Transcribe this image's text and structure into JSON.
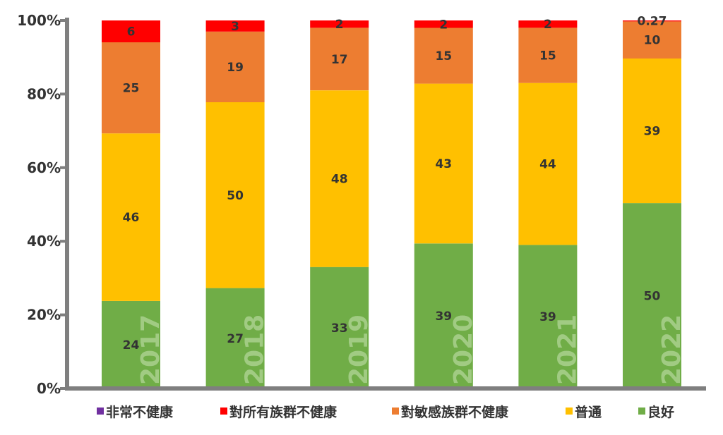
{
  "chart_data": {
    "type": "bar",
    "stacked": true,
    "normalized": true,
    "categories": [
      "2017",
      "2018",
      "2019",
      "2020",
      "2021",
      "2022"
    ],
    "series": [
      {
        "name": "良好",
        "color": "#70ad47",
        "values": [
          24,
          27,
          33,
          39,
          39,
          50
        ],
        "labels": [
          "24",
          "27",
          "33",
          "39",
          "39",
          "50"
        ]
      },
      {
        "name": "普通",
        "color": "#ffc000",
        "values": [
          46,
          50,
          48,
          43,
          44,
          39
        ],
        "labels": [
          "46",
          "50",
          "48",
          "43",
          "44",
          "39"
        ]
      },
      {
        "name": "對敏感族群不健康",
        "color": "#ed7d31",
        "values": [
          25,
          19,
          17,
          15,
          15,
          10
        ],
        "labels": [
          "25",
          "19",
          "17",
          "15",
          "15",
          "10"
        ]
      },
      {
        "name": "對所有族群不健康",
        "color": "#ff0000",
        "values": [
          6,
          3,
          2,
          2,
          2,
          0.27
        ],
        "labels": [
          "6",
          "3",
          "2",
          "2",
          "2",
          "0.27"
        ]
      },
      {
        "name": "非常不健康",
        "color": "#7030a0",
        "values": [
          0,
          0,
          0,
          0,
          0,
          0
        ],
        "labels": [
          "",
          "",
          "",
          "",
          "",
          ""
        ]
      }
    ],
    "y_ticks": [
      "0%",
      "20%",
      "40%",
      "60%",
      "80%",
      "100%"
    ],
    "ylim": [
      0,
      100
    ],
    "grid": false,
    "legend_position": "bottom",
    "legend_order": [
      "非常不健康",
      "對所有族群不健康",
      "對敏感族群不健康",
      "普通",
      "良好"
    ],
    "axis_color": "#7f7f7f",
    "text_color": "#333333",
    "year_label_color": "#a9d08e"
  }
}
